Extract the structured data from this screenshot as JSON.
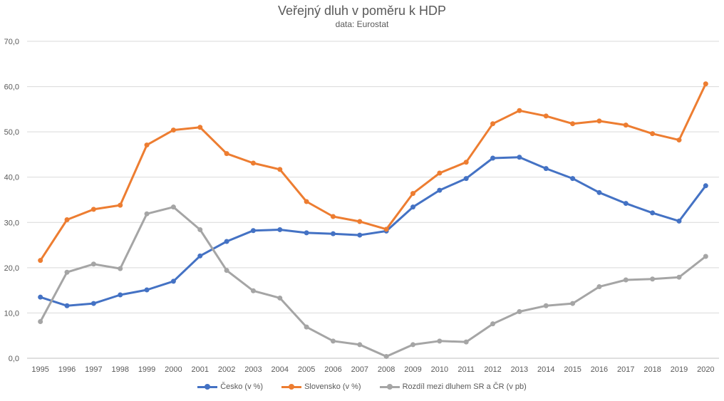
{
  "chart_data": {
    "type": "line",
    "title": "Veřejný dluh v poměru k HDP",
    "subtitle": "data: Eurostat",
    "xlabel": "",
    "ylabel": "",
    "ylim": [
      0,
      70
    ],
    "yticks": [
      "0,0",
      "10,0",
      "20,0",
      "30,0",
      "40,0",
      "50,0",
      "60,0",
      "70,0"
    ],
    "grid": "horizontal",
    "legend_position": "bottom",
    "categories": [
      "1995",
      "1996",
      "1997",
      "1998",
      "1999",
      "2000",
      "2001",
      "2002",
      "2003",
      "2004",
      "2005",
      "2006",
      "2007",
      "2008",
      "2009",
      "2010",
      "2011",
      "2012",
      "2013",
      "2014",
      "2015",
      "2016",
      "2017",
      "2018",
      "2019",
      "2020"
    ],
    "series": [
      {
        "name": "Česko (v %)",
        "color": "#4472c4",
        "values": [
          13.5,
          11.6,
          12.1,
          14.0,
          15.1,
          17.0,
          22.6,
          25.8,
          28.2,
          28.4,
          27.7,
          27.5,
          27.2,
          28.1,
          33.4,
          37.1,
          39.7,
          44.2,
          44.4,
          41.9,
          39.7,
          36.6,
          34.2,
          32.1,
          30.3,
          38.1
        ]
      },
      {
        "name": "Slovensko (v %)",
        "color": "#ed7d31",
        "values": [
          21.6,
          30.6,
          32.9,
          33.8,
          47.1,
          50.4,
          51.0,
          45.2,
          43.1,
          41.7,
          34.6,
          31.3,
          30.2,
          28.5,
          36.4,
          40.9,
          43.3,
          51.8,
          54.7,
          53.5,
          51.8,
          52.4,
          51.5,
          49.6,
          48.2,
          60.6
        ]
      },
      {
        "name": "Rozdíl mezi dluhem SR a ČR (v pb)",
        "color": "#a5a5a5",
        "values": [
          8.1,
          19.0,
          20.8,
          19.8,
          31.9,
          33.4,
          28.4,
          19.4,
          14.9,
          13.3,
          6.9,
          3.8,
          3.0,
          0.4,
          3.0,
          3.8,
          3.6,
          7.6,
          10.3,
          11.6,
          12.1,
          15.8,
          17.3,
          17.5,
          17.9,
          22.5
        ]
      }
    ]
  }
}
